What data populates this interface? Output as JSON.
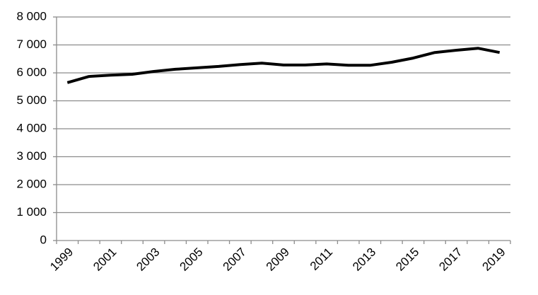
{
  "chart_data": {
    "type": "line",
    "categories": [
      "1999",
      null,
      "2001",
      null,
      "2003",
      null,
      "2005",
      null,
      "2007",
      null,
      "2009",
      null,
      "2011",
      null,
      "2013",
      null,
      "2015",
      null,
      "2017",
      null,
      "2019"
    ],
    "values": [
      5650,
      5870,
      5920,
      5950,
      6050,
      6130,
      6180,
      6230,
      6300,
      6350,
      6280,
      6280,
      6320,
      6270,
      6270,
      6380,
      6530,
      6730,
      6810,
      6880,
      6730
    ],
    "color": "#000000",
    "ylim": [
      0,
      8000
    ],
    "yticks": [
      0,
      {
        "value": 1000,
        "label": "1 000"
      },
      {
        "value": 2000,
        "label": "2 000"
      },
      {
        "value": 3000,
        "label": "3 000"
      },
      {
        "value": 4000,
        "label": "4 000"
      },
      {
        "value": 5000,
        "label": "5 000"
      },
      {
        "value": 6000,
        "label": "6 000"
      },
      {
        "value": 7000,
        "label": "7 000"
      },
      {
        "value": 8000,
        "label": "8 000"
      }
    ],
    "grid": true
  }
}
